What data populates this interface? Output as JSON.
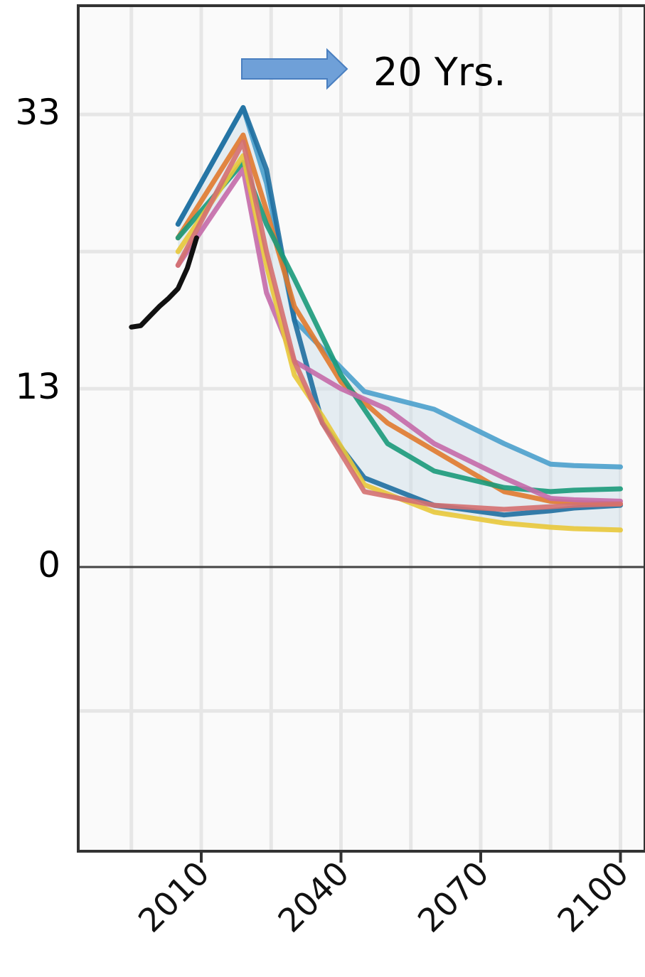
{
  "chart_data": {
    "type": "line",
    "xlim": [
      1990,
      2100
    ],
    "ylim": [
      -20,
      38
    ],
    "x_ticks": [
      {
        "value": 2010,
        "label": "2010"
      },
      {
        "value": 2040,
        "label": "2040"
      },
      {
        "value": 2070,
        "label": "2070"
      },
      {
        "value": 2100,
        "label": "2100"
      }
    ],
    "y_ticks": [
      {
        "value": 33,
        "label": "33"
      },
      {
        "value": 13,
        "label": "13"
      },
      {
        "value": 0,
        "label": "0"
      }
    ],
    "grid": true,
    "annotation": {
      "text": "20 Yrs.",
      "arrow_color": "#6fa0d8"
    },
    "historical": {
      "color": "#111111",
      "x": [
        1995,
        1997,
        1999,
        2001,
        2003,
        2005,
        2007,
        2009
      ],
      "y": [
        17.5,
        17.6,
        18.3,
        19.0,
        19.6,
        20.3,
        21.8,
        24.0
      ]
    },
    "series": [
      {
        "color": "#4aa0cc",
        "x": [
          2005,
          2019,
          2024,
          2030,
          2045,
          2060,
          2075,
          2085,
          2090,
          2100
        ],
        "y": [
          25,
          33.5,
          28,
          18,
          12.8,
          11.5,
          9.0,
          7.5,
          7.4,
          7.3
        ]
      },
      {
        "color": "#1f6fa0",
        "x": [
          2005,
          2019,
          2024,
          2030,
          2036,
          2045,
          2060,
          2075,
          2085,
          2090,
          2100
        ],
        "y": [
          25,
          33.5,
          29,
          18,
          10.5,
          6.5,
          4.5,
          3.8,
          4.1,
          4.3,
          4.5
        ]
      },
      {
        "color": "#e07a2e",
        "x": [
          2005,
          2019,
          2024,
          2030,
          2040,
          2050,
          2060,
          2075,
          2085,
          2090,
          2100
        ],
        "y": [
          24,
          31.5,
          26,
          19,
          13.5,
          10.5,
          8.5,
          5.5,
          4.8,
          4.7,
          4.6
        ]
      },
      {
        "color": "#1a9a7a",
        "x": [
          2005,
          2019,
          2024,
          2030,
          2040,
          2050,
          2060,
          2075,
          2085,
          2090,
          2100
        ],
        "y": [
          24,
          29.5,
          25,
          21,
          14,
          9.0,
          7.0,
          5.8,
          5.5,
          5.6,
          5.7
        ]
      },
      {
        "color": "#c46aa8",
        "x": [
          2005,
          2019,
          2024,
          2030,
          2040,
          2050,
          2060,
          2075,
          2085,
          2090,
          2100
        ],
        "y": [
          22,
          29,
          20,
          15,
          13,
          11.5,
          9.0,
          6.5,
          5.0,
          4.9,
          4.8
        ]
      },
      {
        "color": "#e8c83a",
        "x": [
          2005,
          2019,
          2024,
          2030,
          2036,
          2045,
          2060,
          2075,
          2085,
          2090,
          2100
        ],
        "y": [
          23,
          30,
          22,
          14,
          11,
          6.0,
          4.0,
          3.2,
          2.9,
          2.8,
          2.7
        ]
      },
      {
        "color": "#d47070",
        "x": [
          2005,
          2019,
          2024,
          2030,
          2036,
          2045,
          2060,
          2075,
          2085,
          2090,
          2100
        ],
        "y": [
          22,
          31,
          23,
          15,
          10.5,
          5.5,
          4.5,
          4.2,
          4.4,
          4.5,
          4.6
        ]
      }
    ]
  }
}
